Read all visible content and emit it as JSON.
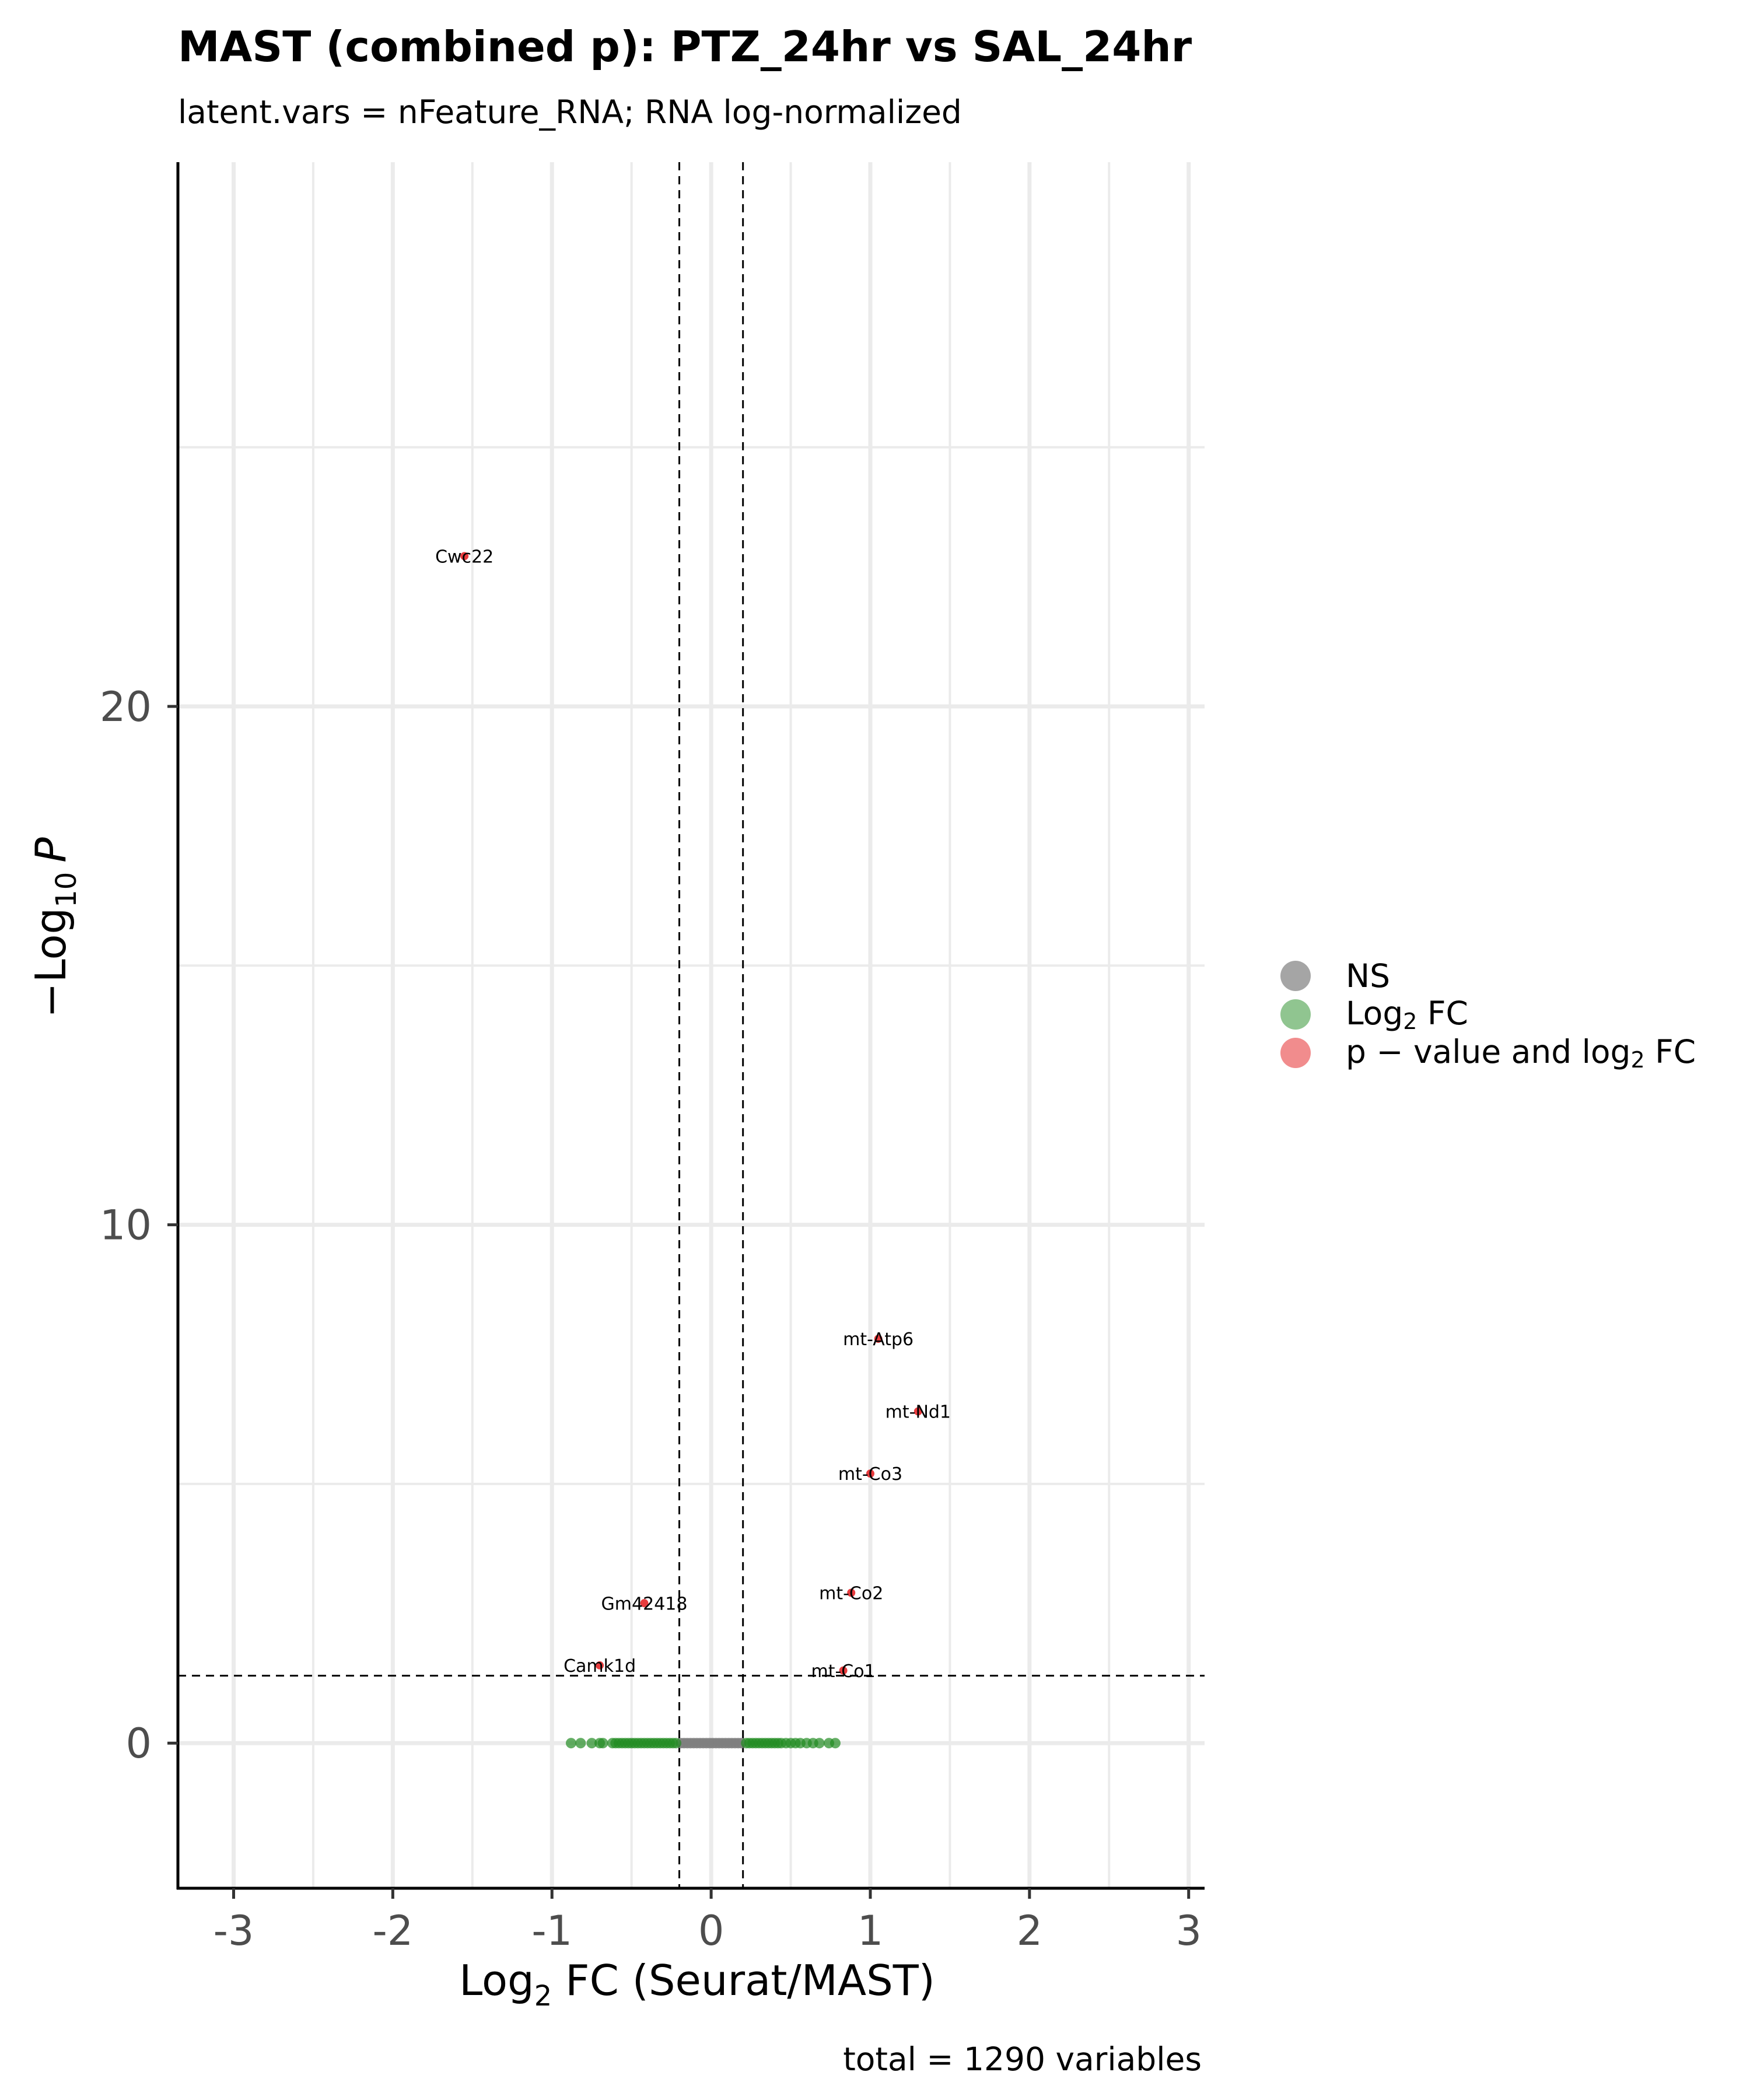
{
  "chart_data": {
    "type": "scatter",
    "title": "MAST (combined p): PTZ_24hr vs SAL_24hr",
    "subtitle": "latent.vars = nFeature_RNA; RNA log-normalized",
    "xlabel_main": "Log",
    "xlabel_sub": "2",
    "xlabel_rest": " FC (Seurat/MAST)",
    "ylabel_prefix": "−Log",
    "ylabel_sub": "10",
    "ylabel_suffix": "P",
    "caption": "total = 1290 variables",
    "xlim": [
      -3.35,
      3.1
    ],
    "ylim": [
      -2.8,
      30.5
    ],
    "x_ticks": [
      -3,
      -2,
      -1,
      0,
      1,
      2,
      3
    ],
    "x_tick_labels": [
      "-3",
      "-2",
      "-1",
      "0",
      "1",
      "2",
      "3"
    ],
    "y_ticks": [
      0,
      10,
      20
    ],
    "y_tick_labels": [
      "0",
      "10",
      "20"
    ],
    "fc_cutoff": 0.2,
    "p_cutoff_neglog10": 1.3,
    "grid": true,
    "legend_position": "right",
    "legend": [
      {
        "key": "NS",
        "main": "NS",
        "sub": "",
        "rest": "",
        "color": "#7f7f7f"
      },
      {
        "key": "Log2 FC",
        "main": "Log",
        "sub": "2",
        "rest": " FC",
        "color": "#228b22"
      },
      {
        "key": "p-value and log2 FC",
        "main": "p − value and log",
        "sub": "2",
        "rest": " FC",
        "color": "#e41a1c"
      }
    ],
    "labeled_points": [
      {
        "label": "Cwc22",
        "x": -1.55,
        "y": 22.9
      },
      {
        "label": "mt-Atp6",
        "x": 1.05,
        "y": 7.8
      },
      {
        "label": "mt-Nd1",
        "x": 1.3,
        "y": 6.4
      },
      {
        "label": "mt-Co3",
        "x": 1.0,
        "y": 5.2
      },
      {
        "label": "mt-Co2",
        "x": 0.88,
        "y": 2.9
      },
      {
        "label": "Gm42418",
        "x": -0.42,
        "y": 2.7
      },
      {
        "label": "Camk1d",
        "x": -0.7,
        "y": 1.5
      },
      {
        "label": "mt-Co1",
        "x": 0.83,
        "y": 1.4
      }
    ],
    "fc_only_points_x": [
      -0.88,
      -0.82,
      -0.75,
      -0.7,
      -0.68,
      -0.62,
      -0.6,
      -0.58,
      -0.56,
      -0.54,
      -0.52,
      -0.5,
      -0.48,
      -0.46,
      -0.44,
      -0.42,
      -0.4,
      -0.38,
      -0.36,
      -0.34,
      -0.32,
      -0.3,
      -0.28,
      -0.26,
      -0.24,
      -0.22,
      0.22,
      0.24,
      0.26,
      0.28,
      0.3,
      0.32,
      0.34,
      0.36,
      0.38,
      0.4,
      0.42,
      0.44,
      0.47,
      0.5,
      0.53,
      0.56,
      0.6,
      0.64,
      0.68,
      0.74,
      0.78
    ],
    "ns_points_x": [
      -0.19,
      -0.17,
      -0.15,
      -0.13,
      -0.11,
      -0.09,
      -0.07,
      -0.05,
      -0.03,
      -0.01,
      0.01,
      0.03,
      0.05,
      0.07,
      0.09,
      0.11,
      0.13,
      0.15,
      0.17,
      0.19
    ]
  }
}
